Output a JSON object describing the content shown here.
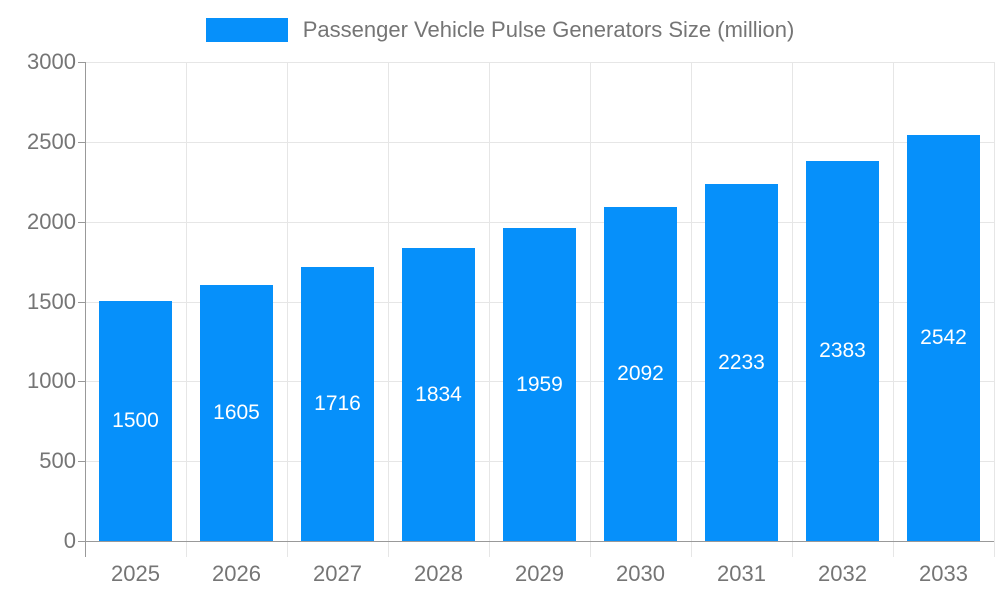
{
  "chart_data": {
    "type": "bar",
    "title": "Passenger Vehicle Pulse Generators Size (million)",
    "categories": [
      "2025",
      "2026",
      "2027",
      "2028",
      "2029",
      "2030",
      "2031",
      "2032",
      "2033"
    ],
    "values": [
      1500,
      1605,
      1716,
      1834,
      1959,
      2092,
      2233,
      2383,
      2542
    ],
    "series_name": "Passenger Vehicle Pulse Generators Size (million)",
    "xlabel": "",
    "ylabel": "",
    "ylim": [
      0,
      3000
    ],
    "yticks": [
      0,
      500,
      1000,
      1500,
      2000,
      2500,
      3000
    ],
    "grid": "on",
    "legend_position": "top-center",
    "value_labels": "inside-center-white",
    "colors": {
      "bar": "#0690FA",
      "gridline": "#E6E6E6",
      "axis": "#999999",
      "tick_text": "#757575",
      "value_label_text": "#FFFFFF",
      "background": "#FFFFFF"
    }
  }
}
